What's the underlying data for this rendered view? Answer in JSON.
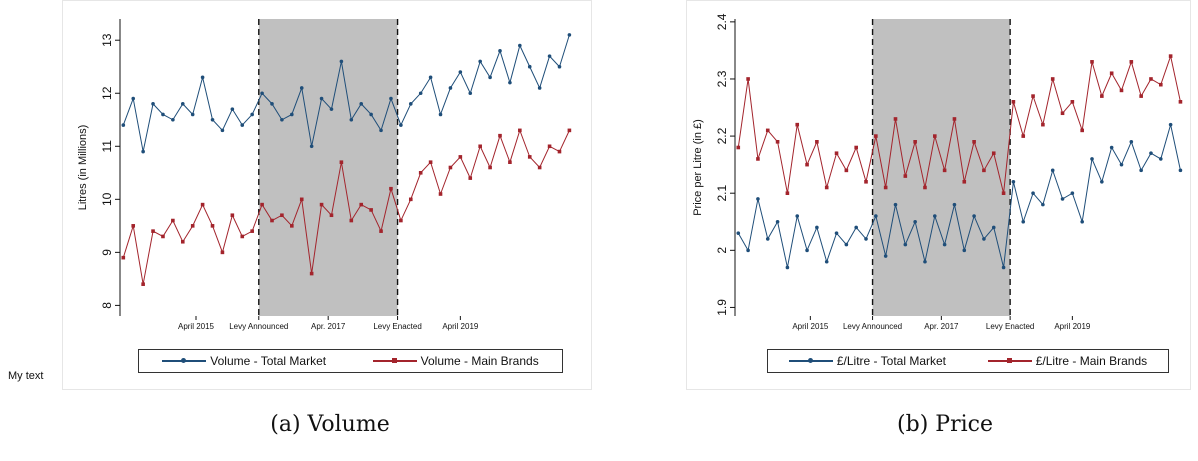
{
  "side_note": "My text",
  "colors": {
    "total_market": "#1f4e79",
    "main_brands": "#a3242c",
    "shade": "#c0c0c0"
  },
  "captions": {
    "a": "(a) Volume",
    "b": "(b) Price"
  },
  "chart_data": [
    {
      "type": "line",
      "panel": "a",
      "ylabel": "Litres (in Millions)",
      "ylim": [
        7.8,
        13.4
      ],
      "yticks": [
        "8",
        "9",
        "10",
        "11",
        "12",
        "13"
      ],
      "xlim": [
        2014.1,
        2021.0
      ],
      "xticks": [
        {
          "x": 2015.25,
          "label": "April 2015"
        },
        {
          "x": 2016.2,
          "label": "Levy Announced"
        },
        {
          "x": 2017.25,
          "label": "Apr. 2017"
        },
        {
          "x": 2018.3,
          "label": "Levy Enacted"
        },
        {
          "x": 2019.25,
          "label": "April 2019"
        }
      ],
      "shaded_region": [
        2016.2,
        2018.3
      ],
      "legend": [
        "Volume - Total Market",
        "Volume - Main Brands"
      ],
      "series": [
        {
          "name": "Volume - Total Market",
          "marker": "circle",
          "color": "#1f4e79",
          "x": [
            2014.15,
            2014.3,
            2014.45,
            2014.6,
            2014.75,
            2014.9,
            2015.05,
            2015.2,
            2015.35,
            2015.5,
            2015.65,
            2015.8,
            2015.95,
            2016.1,
            2016.25,
            2016.4,
            2016.55,
            2016.7,
            2016.85,
            2017.0,
            2017.15,
            2017.3,
            2017.45,
            2017.6,
            2017.75,
            2017.9,
            2018.05,
            2018.2,
            2018.35,
            2018.5,
            2018.65,
            2018.8,
            2018.95,
            2019.1,
            2019.25,
            2019.4,
            2019.55,
            2019.7,
            2019.85,
            2020.0,
            2020.15,
            2020.3,
            2020.45,
            2020.6,
            2020.75,
            2020.9
          ],
          "y": [
            11.4,
            11.9,
            10.9,
            11.8,
            11.6,
            11.5,
            11.8,
            11.6,
            12.3,
            11.5,
            11.3,
            11.7,
            11.4,
            11.6,
            12.0,
            11.8,
            11.5,
            11.6,
            12.1,
            11.0,
            11.9,
            11.7,
            12.6,
            11.5,
            11.8,
            11.6,
            11.3,
            11.9,
            11.4,
            11.8,
            12.0,
            12.3,
            11.6,
            12.1,
            12.4,
            12.0,
            12.6,
            12.3,
            12.8,
            12.2,
            12.9,
            12.5,
            12.1,
            12.7,
            12.5,
            13.1
          ]
        },
        {
          "name": "Volume - Main Brands",
          "marker": "square",
          "color": "#a3242c",
          "x": [
            2014.15,
            2014.3,
            2014.45,
            2014.6,
            2014.75,
            2014.9,
            2015.05,
            2015.2,
            2015.35,
            2015.5,
            2015.65,
            2015.8,
            2015.95,
            2016.1,
            2016.25,
            2016.4,
            2016.55,
            2016.7,
            2016.85,
            2017.0,
            2017.15,
            2017.3,
            2017.45,
            2017.6,
            2017.75,
            2017.9,
            2018.05,
            2018.2,
            2018.35,
            2018.5,
            2018.65,
            2018.8,
            2018.95,
            2019.1,
            2019.25,
            2019.4,
            2019.55,
            2019.7,
            2019.85,
            2020.0,
            2020.15,
            2020.3,
            2020.45,
            2020.6,
            2020.75,
            2020.9
          ],
          "y": [
            8.9,
            9.5,
            8.4,
            9.4,
            9.3,
            9.6,
            9.2,
            9.5,
            9.9,
            9.5,
            9.0,
            9.7,
            9.3,
            9.4,
            9.9,
            9.6,
            9.7,
            9.5,
            10.0,
            8.6,
            9.9,
            9.7,
            10.7,
            9.6,
            9.9,
            9.8,
            9.4,
            10.2,
            9.6,
            10.0,
            10.5,
            10.7,
            10.1,
            10.6,
            10.8,
            10.4,
            11.0,
            10.6,
            11.2,
            10.7,
            11.3,
            10.8,
            10.6,
            11.0,
            10.9,
            11.3
          ]
        }
      ]
    },
    {
      "type": "line",
      "panel": "b",
      "ylabel": "Price per Litre (in £)",
      "ylim": [
        1.885,
        2.405
      ],
      "yticks": [
        "1.9",
        "2",
        "2.1",
        "2.2",
        "2.3",
        "2.4"
      ],
      "xlim": [
        2014.1,
        2021.0
      ],
      "xticks": [
        {
          "x": 2015.25,
          "label": "April 2015"
        },
        {
          "x": 2016.2,
          "label": "Levy Announced"
        },
        {
          "x": 2017.25,
          "label": "Apr. 2017"
        },
        {
          "x": 2018.3,
          "label": "Levy Enacted"
        },
        {
          "x": 2019.25,
          "label": "April 2019"
        }
      ],
      "shaded_region": [
        2016.2,
        2018.3
      ],
      "legend": [
        "£/Litre - Total Market",
        "£/Litre - Main Brands"
      ],
      "series": [
        {
          "name": "£/Litre - Total Market",
          "marker": "circle",
          "color": "#1f4e79",
          "x": [
            2014.15,
            2014.3,
            2014.45,
            2014.6,
            2014.75,
            2014.9,
            2015.05,
            2015.2,
            2015.35,
            2015.5,
            2015.65,
            2015.8,
            2015.95,
            2016.1,
            2016.25,
            2016.4,
            2016.55,
            2016.7,
            2016.85,
            2017.0,
            2017.15,
            2017.3,
            2017.45,
            2017.6,
            2017.75,
            2017.9,
            2018.05,
            2018.2,
            2018.35,
            2018.5,
            2018.65,
            2018.8,
            2018.95,
            2019.1,
            2019.25,
            2019.4,
            2019.55,
            2019.7,
            2019.85,
            2020.0,
            2020.15,
            2020.3,
            2020.45,
            2020.6,
            2020.75,
            2020.9
          ],
          "y": [
            2.03,
            2.0,
            2.09,
            2.02,
            2.05,
            1.97,
            2.06,
            2.0,
            2.04,
            1.98,
            2.03,
            2.01,
            2.04,
            2.02,
            2.06,
            1.99,
            2.08,
            2.01,
            2.05,
            1.98,
            2.06,
            2.01,
            2.08,
            2.0,
            2.06,
            2.02,
            2.04,
            1.97,
            2.12,
            2.05,
            2.1,
            2.08,
            2.14,
            2.09,
            2.1,
            2.05,
            2.16,
            2.12,
            2.18,
            2.15,
            2.19,
            2.14,
            2.17,
            2.16,
            2.22,
            2.14
          ]
        },
        {
          "name": "£/Litre - Main Brands",
          "marker": "square",
          "color": "#a3242c",
          "x": [
            2014.15,
            2014.3,
            2014.45,
            2014.6,
            2014.75,
            2014.9,
            2015.05,
            2015.2,
            2015.35,
            2015.5,
            2015.65,
            2015.8,
            2015.95,
            2016.1,
            2016.25,
            2016.4,
            2016.55,
            2016.7,
            2016.85,
            2017.0,
            2017.15,
            2017.3,
            2017.45,
            2017.6,
            2017.75,
            2017.9,
            2018.05,
            2018.2,
            2018.35,
            2018.5,
            2018.65,
            2018.8,
            2018.95,
            2019.1,
            2019.25,
            2019.4,
            2019.55,
            2019.7,
            2019.85,
            2020.0,
            2020.15,
            2020.3,
            2020.45,
            2020.6,
            2020.75,
            2020.9
          ],
          "y": [
            2.18,
            2.3,
            2.16,
            2.21,
            2.19,
            2.1,
            2.22,
            2.15,
            2.19,
            2.11,
            2.17,
            2.14,
            2.18,
            2.12,
            2.2,
            2.11,
            2.23,
            2.13,
            2.19,
            2.11,
            2.2,
            2.14,
            2.23,
            2.12,
            2.19,
            2.14,
            2.17,
            2.1,
            2.26,
            2.2,
            2.27,
            2.22,
            2.3,
            2.24,
            2.26,
            2.21,
            2.33,
            2.27,
            2.31,
            2.28,
            2.33,
            2.27,
            2.3,
            2.29,
            2.34,
            2.26
          ]
        }
      ]
    }
  ]
}
